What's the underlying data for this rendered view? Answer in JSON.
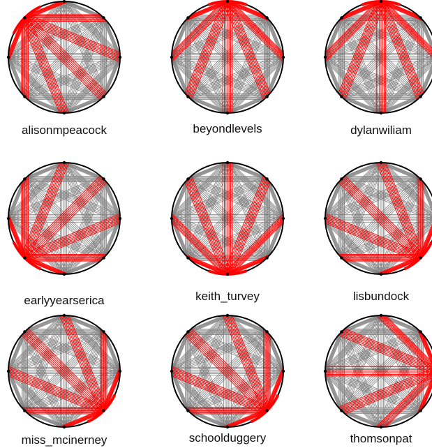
{
  "colors": {
    "background": "#ffffff",
    "edge": "#808080",
    "highlight": "#ff0000",
    "outline": "#000000",
    "node": "#000000"
  },
  "panels": [
    {
      "label": "alisonmpeacock",
      "highlight_node": 7
    },
    {
      "label": "beyondlevels",
      "highlight_node": 0
    },
    {
      "label": "dylanwiliam",
      "highlight_node": 0
    },
    {
      "label": "earlyyearserica",
      "highlight_node": 5
    },
    {
      "label": "keith_turvey",
      "highlight_node": 4
    },
    {
      "label": "lisbundock",
      "highlight_node": 3
    },
    {
      "label": "miss_mcinerney",
      "highlight_node": 3
    },
    {
      "label": "schoolduggery",
      "highlight_node": 3
    },
    {
      "label": "thomsonpat",
      "highlight_node": 2
    }
  ]
}
